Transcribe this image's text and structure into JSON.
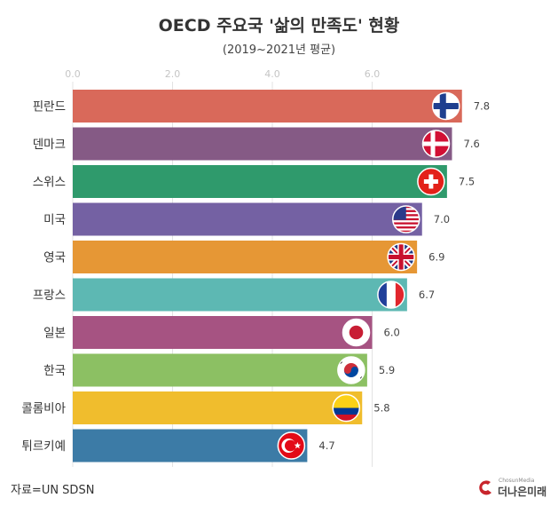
{
  "title": "OECD 주요국 '삶의 만족도' 현황",
  "subtitle": "(2019~2021년 평균)",
  "source": "자료=UN SDSN",
  "brand": {
    "name": "더나은미래",
    "small": "ChosunMedia"
  },
  "chart_data": {
    "type": "bar",
    "orientation": "horizontal",
    "categories": [
      "핀란드",
      "덴마크",
      "스위스",
      "미국",
      "영국",
      "프랑스",
      "일본",
      "한국",
      "콜롬비아",
      "튀르키예"
    ],
    "values": [
      7.8,
      7.6,
      7.5,
      7.0,
      6.9,
      6.7,
      6.0,
      5.9,
      5.8,
      4.7
    ],
    "value_labels": [
      "7.8",
      "7.6",
      "7.5",
      "7.0",
      "6.9",
      "6.7",
      "6.0",
      "5.9",
      "5.8",
      "4.7"
    ],
    "xlim": [
      0,
      8
    ],
    "xticks": [
      0,
      2,
      4,
      6
    ],
    "xtick_labels": [
      "0.0",
      "2.0",
      "4.0",
      "6.0"
    ],
    "axis_position": "top",
    "grid": true,
    "colors": [
      "#d9695a",
      "#855a85",
      "#2f9a6c",
      "#7461a3",
      "#e69735",
      "#5db8b3",
      "#a65382",
      "#8cc063",
      "#f0bd2d",
      "#3c7ba6"
    ],
    "flags": [
      "finland-flag-icon",
      "denmark-flag-icon",
      "switzerland-flag-icon",
      "usa-flag-icon",
      "uk-flag-icon",
      "france-flag-icon",
      "japan-flag-icon",
      "korea-flag-icon",
      "colombia-flag-icon",
      "turkey-flag-icon"
    ]
  }
}
